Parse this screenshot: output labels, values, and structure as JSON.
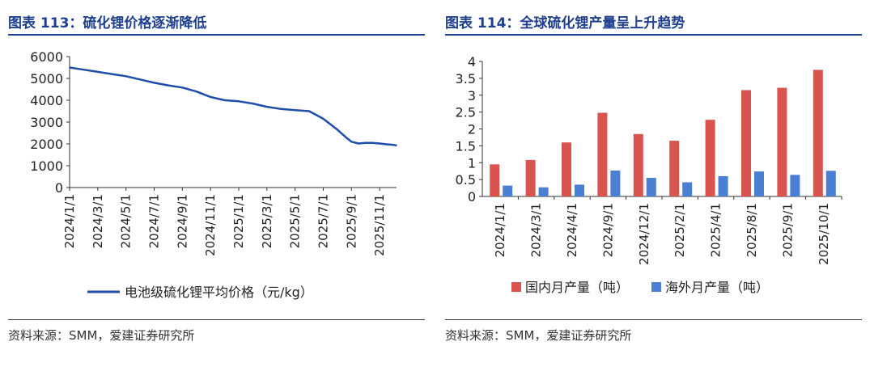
{
  "charts": {
    "left": {
      "fig_title": "图表 113：硫化锂价格逐渐降低",
      "source": "资料来源：SMM，爱建证券研究所"
    },
    "right": {
      "fig_title": "图表 114：全球硫化锂产量呈上升趋势",
      "source": "资料来源：SMM，爱建证券研究所"
    }
  },
  "chart_data": [
    {
      "type": "line",
      "title": "图表 113：硫化锂价格逐渐降低",
      "xlabel": "",
      "ylabel": "",
      "x_tick_labels": [
        "2024/1/1",
        "2024/3/1",
        "2024/5/1",
        "2024/7/1",
        "2024/9/1",
        "2024/11/1",
        "2025/1/1",
        "2025/3/1",
        "2025/5/1",
        "2025/7/1",
        "2025/9/1",
        "2025/11/1"
      ],
      "y_ticks": [
        0,
        1000,
        2000,
        3000,
        4000,
        5000,
        6000
      ],
      "ylim": [
        0,
        6000
      ],
      "x_range_months": [
        0,
        23.2
      ],
      "series": [
        {
          "name": "电池级硫化锂平均价格（元/kg）",
          "color": "#1f4ea8",
          "x_months": [
            0,
            1,
            2,
            3,
            4,
            5,
            6,
            7,
            8,
            9,
            10,
            11,
            12,
            13,
            14,
            15,
            16,
            17,
            18,
            19,
            19.7,
            20,
            20.5,
            21,
            21.5,
            22,
            22.5,
            23,
            23.2
          ],
          "values": [
            5500,
            5400,
            5300,
            5200,
            5100,
            4950,
            4800,
            4680,
            4580,
            4400,
            4150,
            4000,
            3950,
            3850,
            3700,
            3600,
            3550,
            3500,
            3150,
            2650,
            2250,
            2100,
            2020,
            2050,
            2050,
            2020,
            1980,
            1950,
            1930
          ]
        }
      ],
      "legend": "bottom"
    },
    {
      "type": "bar",
      "title": "图表 114：全球硫化锂产量呈上升趋势",
      "xlabel": "",
      "ylabel": "",
      "categories": [
        "2024/1/1",
        "2024/3/1",
        "2024/4/1",
        "2024/9/1",
        "2024/12/1",
        "2025/2/1",
        "2025/4/1",
        "2025/8/1",
        "2025/9/1",
        "2025/10/1"
      ],
      "y_tick_labels": [
        "0",
        "0.5",
        "1",
        "1.5",
        "2",
        "2.5",
        "3",
        "3.5",
        "4"
      ],
      "ylim": [
        0,
        4
      ],
      "series": [
        {
          "name": "国内月产量（吨）",
          "color": "#d9534f",
          "values": [
            0.95,
            1.08,
            1.6,
            2.48,
            1.85,
            1.65,
            2.27,
            3.15,
            3.22,
            3.75
          ]
        },
        {
          "name": "海外月产量（吨）",
          "color": "#4a7fd4",
          "values": [
            0.32,
            0.27,
            0.35,
            0.77,
            0.55,
            0.42,
            0.6,
            0.74,
            0.64,
            0.76
          ]
        }
      ],
      "legend": "bottom"
    }
  ]
}
